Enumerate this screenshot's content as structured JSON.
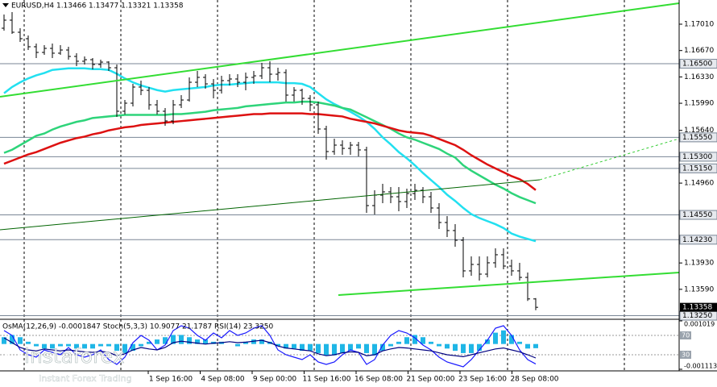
{
  "chart_data": [
    {
      "type": "candlestick",
      "title": "EURUSD,H4  1.13466 1.13477 1.13321 1.13358",
      "ylim": [
        1.13214,
        1.17322
      ],
      "yticks": [
        {
          "value": 1.1701,
          "label": "1.17010"
        },
        {
          "value": 1.1667,
          "label": "1.16670"
        },
        {
          "value": 1.1633,
          "label": "1.16330"
        },
        {
          "value": 1.1599,
          "label": "1.15990"
        },
        {
          "value": 1.1564,
          "label": "1.15640"
        },
        {
          "value": 1.1496,
          "label": "1.14960"
        },
        {
          "value": 1.1393,
          "label": "1.13930"
        },
        {
          "value": 1.1359,
          "label": "1.13590"
        }
      ],
      "levels": [
        {
          "value": 1.165,
          "label": "1.16500"
        },
        {
          "value": 1.1555,
          "label": "1.15550"
        },
        {
          "value": 1.153,
          "label": "1.15300"
        },
        {
          "value": 1.1515,
          "label": "1.15150"
        },
        {
          "value": 1.1455,
          "label": "1.14550"
        },
        {
          "value": 1.1423,
          "label": "1.14230"
        },
        {
          "value": 1.1325,
          "label": "1.13250"
        }
      ],
      "last": {
        "value": 1.13358,
        "label": "1.13358"
      },
      "time_labels": [
        "1 Sep 16:00",
        "4 Sep 08:00",
        "9 Sep 00:00",
        "11 Sep 16:00",
        "16 Sep 08:00",
        "21 Sep 00:00",
        "23 Sep 16:00",
        "28 Sep 08:00"
      ],
      "color": "#000000",
      "open": [
        1.16958,
        1.17062,
        1.16906,
        1.16823,
        1.16719,
        1.16646,
        1.16698,
        1.16636,
        1.16677,
        1.16594,
        1.16532,
        1.16552,
        1.1649,
        1.16521,
        1.16448,
        1.15887,
        1.15991,
        1.16199,
        1.16157,
        1.1597,
        1.15887,
        1.15762,
        1.1597,
        1.16032,
        1.16261,
        1.16324,
        1.1624,
        1.16157,
        1.16282,
        1.16303,
        1.16261,
        1.16324,
        1.16344,
        1.16448,
        1.16365,
        1.16386,
        1.16095,
        1.16157,
        1.16053,
        1.1597,
        1.15658,
        1.15367,
        1.1545,
        1.15408,
        1.1545,
        1.15388,
        1.1467,
        1.14805,
        1.14847,
        1.14784,
        1.14722,
        1.14826,
        1.14868,
        1.14784,
        1.14639,
        1.14452,
        1.14348,
        1.14223,
        1.13828,
        1.13911,
        1.13786,
        1.13932,
        1.14036,
        1.1389,
        1.13828,
        1.13744,
        1.13466
      ],
      "high": [
        1.17135,
        1.17166,
        1.16958,
        1.16864,
        1.1676,
        1.1674,
        1.1676,
        1.1674,
        1.16719,
        1.16636,
        1.16594,
        1.16573,
        1.16552,
        1.16532,
        1.1649,
        1.16032,
        1.1624,
        1.16282,
        1.16199,
        1.16032,
        1.15928,
        1.16032,
        1.16095,
        1.16324,
        1.16407,
        1.16365,
        1.16303,
        1.16344,
        1.16365,
        1.16365,
        1.16386,
        1.16407,
        1.16511,
        1.16532,
        1.16448,
        1.16428,
        1.16199,
        1.16178,
        1.16095,
        1.16012,
        1.157,
        1.15533,
        1.15512,
        1.15492,
        1.15492,
        1.15429,
        1.14868,
        1.14951,
        1.14909,
        1.14909,
        1.14888,
        1.14951,
        1.14909,
        1.14847,
        1.14701,
        1.14535,
        1.14431,
        1.14264,
        1.14015,
        1.14015,
        1.14015,
        1.14119,
        1.14119,
        1.13973,
        1.13932,
        1.13807,
        1.13477
      ],
      "low": [
        1.16927,
        1.16885,
        1.16781,
        1.16677,
        1.16573,
        1.16615,
        1.16573,
        1.16615,
        1.16552,
        1.16469,
        1.1649,
        1.16428,
        1.16448,
        1.16407,
        1.15814,
        1.15845,
        1.15949,
        1.16095,
        1.15908,
        1.15845,
        1.157,
        1.1572,
        1.15928,
        1.16012,
        1.16199,
        1.16178,
        1.16053,
        1.16116,
        1.1622,
        1.16199,
        1.16157,
        1.1624,
        1.16303,
        1.16261,
        1.16282,
        1.16012,
        1.16012,
        1.1597,
        1.15887,
        1.15596,
        1.15263,
        1.15325,
        1.15325,
        1.15325,
        1.15304,
        1.14576,
        1.14556,
        1.14701,
        1.14701,
        1.14597,
        1.14639,
        1.14743,
        1.14701,
        1.14576,
        1.14368,
        1.14264,
        1.1414,
        1.13744,
        1.13765,
        1.13703,
        1.13744,
        1.13869,
        1.13848,
        1.13765,
        1.13703,
        1.1344,
        1.13321
      ],
      "close": [
        1.17062,
        1.16906,
        1.16823,
        1.16719,
        1.16646,
        1.16698,
        1.16636,
        1.16677,
        1.16594,
        1.16532,
        1.16552,
        1.1649,
        1.16521,
        1.16448,
        1.15887,
        1.15991,
        1.16199,
        1.16157,
        1.1597,
        1.15887,
        1.15762,
        1.1597,
        1.16032,
        1.16261,
        1.16324,
        1.1624,
        1.16157,
        1.16282,
        1.16303,
        1.16261,
        1.16324,
        1.16344,
        1.16448,
        1.16365,
        1.16386,
        1.16095,
        1.16157,
        1.16053,
        1.1597,
        1.15658,
        1.15367,
        1.1545,
        1.15408,
        1.1545,
        1.15388,
        1.1467,
        1.14805,
        1.14847,
        1.14784,
        1.14722,
        1.14826,
        1.14868,
        1.14784,
        1.14639,
        1.14452,
        1.14348,
        1.14223,
        1.13828,
        1.13911,
        1.13786,
        1.13932,
        1.14036,
        1.1389,
        1.13828,
        1.13744,
        1.13466,
        1.13358
      ],
      "lines": [
        {
          "color": "#22e0f0",
          "values": [
            1.1612,
            1.162,
            1.1626,
            1.1631,
            1.1635,
            1.1638,
            1.1642,
            1.1643,
            1.1644,
            1.1644,
            1.1644,
            1.1643,
            1.1643,
            1.1642,
            1.1637,
            1.1631,
            1.1626,
            1.1622,
            1.1619,
            1.1616,
            1.1614,
            1.1616,
            1.1617,
            1.1618,
            1.1619,
            1.162,
            1.1622,
            1.1623,
            1.1623,
            1.1624,
            1.1625,
            1.1626,
            1.1626,
            1.1626,
            1.1626,
            1.1625,
            1.1625,
            1.1624,
            1.162,
            1.1612,
            1.1604,
            1.1598,
            1.1593,
            1.1588,
            1.1582,
            1.1575,
            1.1566,
            1.1555,
            1.1546,
            1.1536,
            1.1528,
            1.1519,
            1.1509,
            1.15,
            1.1491,
            1.1481,
            1.1473,
            1.1464,
            1.1456,
            1.1451,
            1.1447,
            1.1443,
            1.1438,
            1.1431,
            1.1427,
            1.1424,
            1.1421
          ]
        },
        {
          "color": "#2ed47a",
          "values": [
            1.1535,
            1.1539,
            1.1545,
            1.1551,
            1.1557,
            1.156,
            1.1565,
            1.1569,
            1.1572,
            1.1575,
            1.1577,
            1.158,
            1.1581,
            1.1582,
            1.1583,
            1.1584,
            1.1584,
            1.1584,
            1.1584,
            1.1584,
            1.1584,
            1.1585,
            1.1585,
            1.1586,
            1.1587,
            1.1588,
            1.159,
            1.1591,
            1.1592,
            1.1593,
            1.1595,
            1.1596,
            1.1597,
            1.1598,
            1.1599,
            1.16,
            1.16,
            1.1601,
            1.1601,
            1.16,
            1.1598,
            1.1596,
            1.1593,
            1.1591,
            1.1586,
            1.1581,
            1.1576,
            1.1571,
            1.1566,
            1.156,
            1.1555,
            1.1552,
            1.1548,
            1.1544,
            1.154,
            1.1534,
            1.1529,
            1.1519,
            1.1512,
            1.1506,
            1.15,
            1.1494,
            1.1489,
            1.1483,
            1.1478,
            1.1474,
            1.147
          ]
        },
        {
          "color": "#dd1111",
          "values": [
            1.1521,
            1.1525,
            1.1529,
            1.1533,
            1.1536,
            1.154,
            1.1544,
            1.1548,
            1.1551,
            1.1554,
            1.1556,
            1.1559,
            1.1561,
            1.1564,
            1.1566,
            1.1568,
            1.1569,
            1.1571,
            1.1572,
            1.1573,
            1.1574,
            1.1575,
            1.1576,
            1.1577,
            1.1578,
            1.1579,
            1.158,
            1.1581,
            1.1582,
            1.1583,
            1.1584,
            1.1585,
            1.1585,
            1.1586,
            1.1586,
            1.1586,
            1.1586,
            1.1586,
            1.1585,
            1.1585,
            1.1584,
            1.1583,
            1.1582,
            1.1579,
            1.1577,
            1.1575,
            1.1573,
            1.157,
            1.1567,
            1.1564,
            1.1562,
            1.1561,
            1.156,
            1.1557,
            1.1553,
            1.1549,
            1.1545,
            1.1539,
            1.1532,
            1.1526,
            1.152,
            1.1515,
            1.151,
            1.1505,
            1.1501,
            1.1495,
            1.1487
          ]
        }
      ]
    },
    {
      "type": "oscillator",
      "title": "OsMA(12,26,9) -0.0001847 Stoch(5,3,3) 10.9077 21.1787 RSI(14) 23.3250",
      "ylim": [
        -0.001113,
        0.001019
      ],
      "yticks": [
        {
          "value": 0.001019,
          "label": "0.001019"
        },
        {
          "value": -0.001113,
          "label": "-0.001113"
        }
      ],
      "y2lim": [
        0,
        100
      ],
      "y2ticks": [
        70,
        30
      ],
      "histogram": {
        "color": "#1fb6e6",
        "values": [
          0.0003,
          0.0004,
          0.0003,
          0.0001,
          -0.0001,
          -0.0002,
          -0.0002,
          -0.0001,
          -0.0001,
          -0.0002,
          -0.0002,
          -0.0002,
          -0.0001,
          -0.0001,
          -0.0003,
          -0.0004,
          -0.0003,
          -0.0001,
          0.0001,
          0.0002,
          0.0003,
          0.0004,
          0.0004,
          0.0003,
          0.0002,
          0.0002,
          0.0001,
          0.0001,
          0,
          -0.0001,
          0.0001,
          0.0002,
          0.0002,
          0.0001,
          -0.0001,
          -0.0002,
          -0.0002,
          -0.0003,
          -0.0003,
          -0.0004,
          -0.0005,
          -0.0005,
          -0.0004,
          -0.0003,
          -0.0002,
          -0.0004,
          -0.0005,
          -0.0003,
          -0.0001,
          0.0001,
          0.0003,
          0.0004,
          0.0003,
          0.0001,
          -0.0001,
          -0.0002,
          -0.0003,
          -0.0004,
          -0.0004,
          -0.0003,
          0.0002,
          0.0005,
          0.0006,
          0.0004,
          0.0001,
          -0.0002,
          -0.0001847
        ]
      },
      "series": [
        {
          "color": "#1a1aff",
          "axis": "y2",
          "values": [
            80,
            70,
            40,
            30,
            25,
            40,
            35,
            30,
            45,
            30,
            25,
            30,
            40,
            20,
            10,
            25,
            55,
            70,
            60,
            40,
            50,
            80,
            90,
            85,
            70,
            60,
            75,
            65,
            80,
            70,
            75,
            85,
            90,
            70,
            40,
            30,
            25,
            20,
            30,
            15,
            10,
            15,
            30,
            40,
            35,
            10,
            20,
            50,
            70,
            80,
            75,
            65,
            50,
            40,
            25,
            15,
            10,
            5,
            20,
            40,
            60,
            85,
            90,
            70,
            40,
            20,
            10.9077
          ]
        },
        {
          "color": "#000080",
          "axis": "y2",
          "values": [
            65,
            55,
            45,
            40,
            38,
            42,
            40,
            38,
            40,
            38,
            36,
            35,
            37,
            35,
            28,
            32,
            40,
            45,
            42,
            40,
            45,
            55,
            58,
            56,
            54,
            52,
            54,
            55,
            57,
            55,
            56,
            58,
            60,
            55,
            48,
            44,
            42,
            40,
            38,
            32,
            28,
            30,
            34,
            36,
            35,
            28,
            30,
            38,
            42,
            45,
            44,
            42,
            40,
            38,
            34,
            30,
            28,
            26,
            30,
            34,
            38,
            42,
            44,
            40,
            36,
            30,
            23.325
          ]
        }
      ]
    }
  ],
  "watermark": {
    "brand": "instaforex",
    "tagline": "Instant Forex Trading"
  }
}
